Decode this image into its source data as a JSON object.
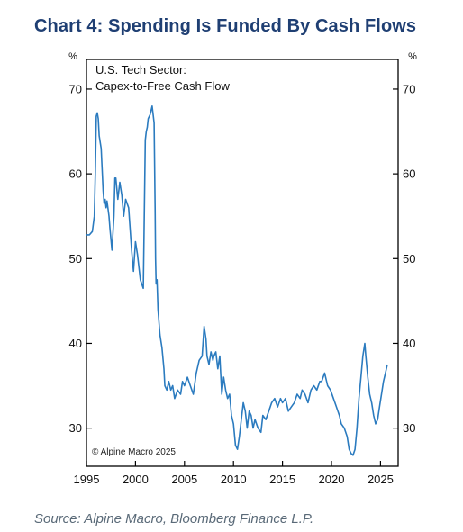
{
  "header": {
    "title": "Chart 4: Spending Is Funded By Cash Flows"
  },
  "footer": {
    "source": "Source: Alpine Macro, Bloomberg Finance L.P."
  },
  "chart_data": {
    "type": "line",
    "title": "Chart 4: Spending Is Funded By Cash Flows",
    "annotation_lines": [
      "U.S. Tech Sector:",
      "Capex-to-Free Cash Flow"
    ],
    "copyright": "© Alpine Macro 2025",
    "y_unit_left": "%",
    "y_unit_right": "%",
    "xlim": [
      1995,
      2026.8
    ],
    "ylim": [
      25.5,
      73.5
    ],
    "x_ticks": [
      1995,
      2000,
      2005,
      2010,
      2015,
      2020,
      2025
    ],
    "y_ticks": [
      30,
      40,
      50,
      60,
      70
    ],
    "line_color": "#2b7bbf",
    "grid": false,
    "series": [
      {
        "x": [
          1995.0,
          1995.3,
          1995.6,
          1995.8,
          1995.9,
          1996.0,
          1996.1,
          1996.2,
          1996.3,
          1996.5,
          1996.7,
          1996.8,
          1996.9,
          1997.0,
          1997.1,
          1997.3,
          1997.4,
          1997.6,
          1997.8,
          1997.9,
          1998.0,
          1998.2,
          1998.4,
          1998.6,
          1998.8,
          1999.0,
          1999.3,
          1999.6,
          1999.8,
          2000.0,
          2000.2,
          2000.5,
          2000.8,
          2001.0,
          2001.1,
          2001.2,
          2001.3,
          2001.5,
          2001.7,
          2001.9,
          2002.0,
          2002.05,
          2002.1,
          2002.2,
          2002.3,
          2002.4,
          2002.5,
          2002.7,
          2002.9,
          2003.0,
          2003.2,
          2003.4,
          2003.6,
          2003.8,
          2004.0,
          2004.3,
          2004.6,
          2004.8,
          2005.0,
          2005.3,
          2005.6,
          2005.9,
          2006.2,
          2006.5,
          2006.8,
          2007.0,
          2007.2,
          2007.3,
          2007.5,
          2007.7,
          2007.9,
          2008.0,
          2008.2,
          2008.4,
          2008.6,
          2008.8,
          2009.0,
          2009.2,
          2009.4,
          2009.6,
          2009.8,
          2010.0,
          2010.2,
          2010.4,
          2010.6,
          2010.8,
          2011.0,
          2011.2,
          2011.4,
          2011.6,
          2011.8,
          2012.0,
          2012.2,
          2012.5,
          2012.8,
          2013.0,
          2013.3,
          2013.6,
          2013.9,
          2014.2,
          2014.5,
          2014.8,
          2015.0,
          2015.3,
          2015.6,
          2015.9,
          2016.2,
          2016.5,
          2016.8,
          2017.0,
          2017.3,
          2017.6,
          2017.9,
          2018.2,
          2018.5,
          2018.8,
          2019.0,
          2019.3,
          2019.6,
          2019.9,
          2020.2,
          2020.5,
          2020.8,
          2021.0,
          2021.3,
          2021.6,
          2021.8,
          2022.0,
          2022.2,
          2022.4,
          2022.6,
          2022.8,
          2023.0,
          2023.2,
          2023.4,
          2023.5,
          2023.7,
          2023.9,
          2024.1,
          2024.3,
          2024.5,
          2024.7,
          2024.9,
          2025.1,
          2025.3,
          2025.5,
          2025.7
        ],
        "y": [
          52.8,
          52.8,
          53.2,
          55.0,
          60.0,
          66.8,
          67.2,
          66.5,
          64.5,
          63.0,
          58.0,
          56.5,
          57.0,
          56.0,
          56.8,
          55.0,
          53.5,
          51.0,
          55.0,
          59.5,
          59.5,
          57.0,
          59.0,
          57.5,
          55.0,
          57.0,
          56.0,
          51.0,
          48.5,
          52.0,
          50.5,
          47.5,
          46.5,
          64.0,
          65.0,
          65.5,
          66.5,
          67.0,
          68.0,
          66.0,
          56.0,
          50.0,
          47.0,
          47.5,
          44.0,
          42.5,
          41.0,
          39.5,
          37.0,
          35.0,
          34.5,
          35.5,
          34.5,
          35.0,
          33.5,
          34.5,
          34.0,
          35.5,
          35.0,
          36.0,
          35.0,
          34.0,
          36.5,
          38.0,
          38.5,
          42.0,
          40.5,
          38.5,
          37.5,
          39.0,
          38.0,
          38.5,
          39.0,
          37.0,
          38.5,
          34.0,
          36.0,
          34.5,
          33.5,
          34.0,
          31.5,
          30.5,
          28.0,
          27.5,
          29.0,
          31.0,
          33.0,
          32.0,
          30.0,
          32.0,
          31.5,
          30.0,
          31.0,
          30.0,
          29.5,
          31.5,
          31.0,
          32.0,
          33.0,
          33.5,
          32.5,
          33.5,
          33.0,
          33.5,
          32.0,
          32.5,
          33.0,
          34.0,
          33.5,
          34.5,
          34.0,
          33.0,
          34.5,
          35.0,
          34.5,
          35.5,
          35.5,
          36.5,
          35.0,
          34.5,
          33.5,
          32.5,
          31.5,
          30.5,
          30.0,
          29.0,
          27.5,
          27.0,
          26.8,
          27.5,
          30.0,
          33.5,
          36.0,
          38.5,
          40.0,
          38.5,
          36.0,
          34.0,
          33.0,
          31.5,
          30.5,
          31.0,
          32.5,
          34.0,
          35.5,
          36.5,
          37.5
        ]
      }
    ]
  }
}
